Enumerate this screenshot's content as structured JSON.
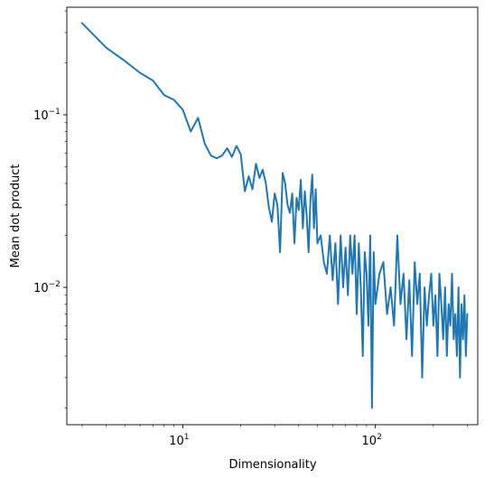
{
  "chart_data": {
    "type": "line",
    "title": "",
    "xlabel": "Dimensionality",
    "ylabel": "Mean dot product",
    "xscale": "log",
    "yscale": "log",
    "xlim": [
      2.5,
      340
    ],
    "ylim": [
      0.0016,
      0.42
    ],
    "grid": false,
    "legend": "none",
    "color": "#1f77b4",
    "x_ticks": [
      {
        "value": 10,
        "base": "10",
        "exp": "1"
      },
      {
        "value": 100,
        "base": "10",
        "exp": "2"
      }
    ],
    "y_ticks": [
      {
        "value": 0.01,
        "base": "10",
        "exp": "−2"
      },
      {
        "value": 0.1,
        "base": "10",
        "exp": "−1"
      }
    ],
    "series": [
      {
        "x": [
          3,
          4,
          5,
          6,
          7,
          8,
          9,
          10,
          11,
          12,
          13,
          14,
          15,
          16,
          17,
          18,
          19,
          20,
          21,
          22,
          23,
          24,
          25,
          26,
          27,
          28,
          29,
          30,
          31,
          32,
          33,
          34,
          35,
          36,
          37,
          38,
          39,
          40,
          41,
          42,
          43,
          44,
          45,
          46,
          47,
          48,
          49,
          50,
          52,
          54,
          56,
          58,
          60,
          62,
          64,
          66,
          68,
          70,
          72,
          74,
          76,
          78,
          80,
          82,
          84,
          86,
          88,
          90,
          92,
          94,
          96,
          98,
          100,
          105,
          110,
          115,
          120,
          125,
          130,
          135,
          140,
          145,
          150,
          155,
          160,
          165,
          170,
          175,
          180,
          185,
          190,
          195,
          200,
          205,
          210,
          215,
          220,
          225,
          230,
          235,
          240,
          245,
          250,
          255,
          260,
          265,
          270,
          275,
          280,
          285,
          290,
          295,
          300
        ],
        "y": [
          0.34,
          0.245,
          0.205,
          0.175,
          0.158,
          0.13,
          0.122,
          0.107,
          0.08,
          0.096,
          0.068,
          0.058,
          0.056,
          0.058,
          0.064,
          0.057,
          0.066,
          0.059,
          0.036,
          0.044,
          0.037,
          0.052,
          0.043,
          0.048,
          0.04,
          0.029,
          0.024,
          0.035,
          0.03,
          0.016,
          0.046,
          0.04,
          0.03,
          0.027,
          0.035,
          0.018,
          0.033,
          0.028,
          0.042,
          0.022,
          0.036,
          0.026,
          0.016,
          0.032,
          0.045,
          0.022,
          0.037,
          0.018,
          0.02,
          0.014,
          0.012,
          0.02,
          0.011,
          0.018,
          0.008,
          0.02,
          0.01,
          0.017,
          0.009,
          0.02,
          0.012,
          0.02,
          0.007,
          0.018,
          0.01,
          0.004,
          0.016,
          0.012,
          0.006,
          0.02,
          0.002,
          0.016,
          0.008,
          0.012,
          0.014,
          0.007,
          0.01,
          0.006,
          0.02,
          0.008,
          0.012,
          0.005,
          0.011,
          0.004,
          0.014,
          0.008,
          0.012,
          0.003,
          0.01,
          0.006,
          0.009,
          0.012,
          0.006,
          0.009,
          0.004,
          0.012,
          0.008,
          0.005,
          0.01,
          0.004,
          0.008,
          0.006,
          0.012,
          0.005,
          0.007,
          0.004,
          0.01,
          0.003,
          0.008,
          0.005,
          0.009,
          0.004,
          0.007
        ]
      }
    ]
  }
}
